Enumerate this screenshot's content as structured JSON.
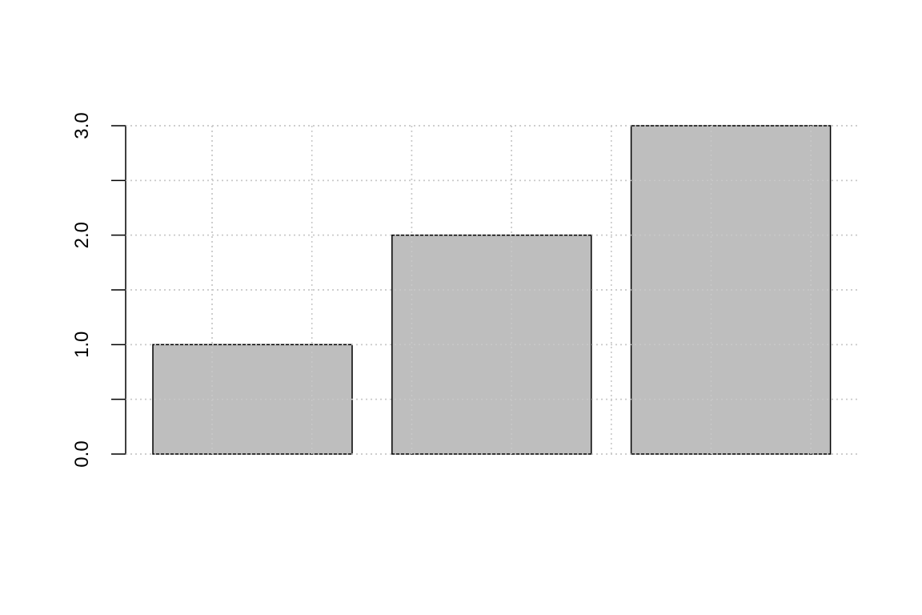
{
  "chart_data": {
    "type": "bar",
    "categories": [
      "",
      "",
      ""
    ],
    "values": [
      1,
      2,
      3
    ],
    "title": "",
    "xlabel": "",
    "ylabel": "",
    "ylim": [
      0,
      3
    ],
    "y_ticks_labeled": [
      "0.0",
      "1.0",
      "2.0",
      "3.0"
    ],
    "y_ticks_minor": [
      0.5,
      1.5,
      2.5
    ],
    "grid": true,
    "bar_color": "#bebebe",
    "bar_border_color": "#000000",
    "grid_color": "#c8c8c8"
  }
}
